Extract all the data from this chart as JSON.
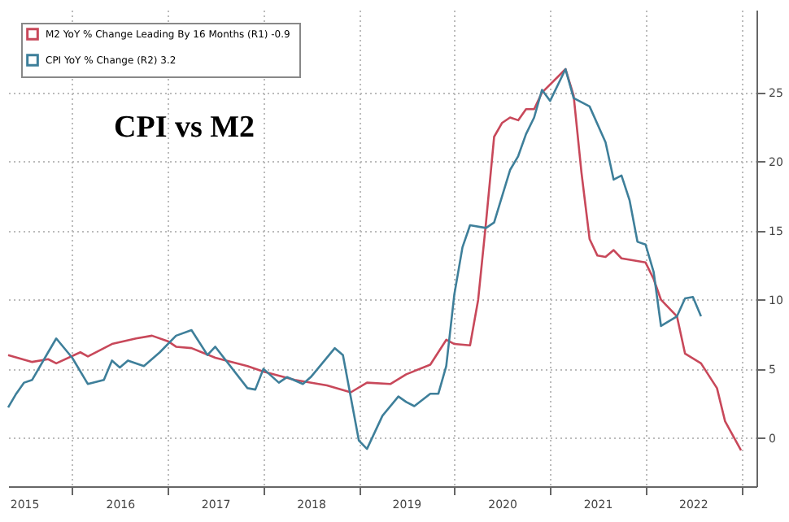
{
  "chart_data": {
    "type": "line",
    "title": "CPI vs M2",
    "legend": "top left",
    "grid": true,
    "line_style": "solid",
    "marker": "none",
    "xlim": [
      "2015-05",
      "2023-03"
    ],
    "xticks": [
      {
        "value": "2015-07",
        "label": "2015"
      },
      {
        "value": "2016",
        "label": null
      },
      {
        "value": "2016-07",
        "label": "2016"
      },
      {
        "value": "2017",
        "label": null
      },
      {
        "value": "2017-07",
        "label": "2017"
      },
      {
        "value": "2018",
        "label": null
      },
      {
        "value": "2018-07",
        "label": "2018"
      },
      {
        "value": "2019",
        "label": null
      },
      {
        "value": "2019-07",
        "label": "2019"
      },
      {
        "value": "2020",
        "label": null
      },
      {
        "value": "2020-07",
        "label": "2020"
      },
      {
        "value": "2021",
        "label": null
      },
      {
        "value": "2021-07",
        "label": "2021"
      },
      {
        "value": "2022",
        "label": null
      },
      {
        "value": "2022-07",
        "label": "2022"
      },
      {
        "value": "2023",
        "label": null
      }
    ],
    "ylim": [
      -3.5,
      31
    ],
    "yticks": [
      0,
      5,
      10,
      15,
      20,
      25
    ],
    "series": [
      {
        "name": "M2 YoY % Change Leading By 16 Months (R1)  -0.9",
        "color": "#c8485a",
        "x": [
          "2015-05",
          "2015-08",
          "2015-10",
          "2015-11",
          "2016-02",
          "2016-03",
          "2016-06",
          "2016-09",
          "2016-11",
          "2017-01",
          "2017-02",
          "2017-04",
          "2017-07",
          "2017-11",
          "2018-01",
          "2018-05",
          "2018-09",
          "2018-12",
          "2019-02",
          "2019-05",
          "2019-07",
          "2019-10",
          "2019-12",
          "2020-01",
          "2020-03",
          "2020-04",
          "2020-05",
          "2020-06",
          "2020-07",
          "2020-08",
          "2020-09",
          "2020-10",
          "2020-11",
          "2020-12",
          "2021-03",
          "2021-04",
          "2021-05",
          "2021-06",
          "2021-07",
          "2021-08",
          "2021-09",
          "2021-10",
          "2022-01",
          "2022-02",
          "2022-03",
          "2022-05",
          "2022-06",
          "2022-08",
          "2022-10",
          "2022-11",
          "2023-01"
        ],
        "values": [
          6.0,
          5.5,
          5.7,
          5.4,
          6.2,
          5.9,
          6.8,
          7.2,
          7.4,
          7.0,
          6.6,
          6.5,
          5.8,
          5.2,
          4.8,
          4.2,
          3.8,
          3.3,
          4.0,
          3.9,
          4.6,
          5.3,
          7.1,
          6.8,
          6.7,
          10.0,
          15.6,
          21.8,
          22.8,
          23.2,
          23.0,
          23.8,
          23.8,
          25.0,
          26.7,
          24.8,
          19.2,
          14.4,
          13.2,
          13.1,
          13.6,
          13.0,
          12.7,
          11.5,
          10.0,
          8.8,
          6.1,
          5.4,
          3.6,
          1.2,
          -0.9
        ]
      },
      {
        "name": "CPI YoY % Change (R2)  3.2",
        "color": "#3e7f9a",
        "x": [
          "2015-05",
          "2015-06",
          "2015-07",
          "2015-08",
          "2015-10",
          "2015-11",
          "2016-01",
          "2016-03",
          "2016-05",
          "2016-06",
          "2016-07",
          "2016-08",
          "2016-10",
          "2016-12",
          "2017-02",
          "2017-04",
          "2017-06",
          "2017-07",
          "2017-11",
          "2017-12",
          "2018-01",
          "2018-03",
          "2018-04",
          "2018-06",
          "2018-07",
          "2018-10",
          "2018-11",
          "2019-01",
          "2019-02",
          "2019-04",
          "2019-06",
          "2019-07",
          "2019-08",
          "2019-10",
          "2019-11",
          "2019-12",
          "2020-01",
          "2020-02",
          "2020-03",
          "2020-05",
          "2020-06",
          "2020-08",
          "2020-09",
          "2020-10",
          "2020-11",
          "2020-12",
          "2021-01",
          "2021-03",
          "2021-04",
          "2021-06",
          "2021-08",
          "2021-09",
          "2021-10",
          "2021-11",
          "2021-12",
          "2022-01",
          "2022-02",
          "2022-03",
          "2022-05",
          "2022-06",
          "2022-07",
          "2022-08"
        ],
        "values": [
          2.2,
          3.2,
          4.0,
          4.2,
          6.2,
          7.2,
          5.8,
          3.9,
          4.2,
          5.6,
          5.1,
          5.6,
          5.2,
          6.2,
          7.4,
          7.8,
          6.0,
          6.6,
          3.6,
          3.5,
          5.0,
          4.0,
          4.4,
          3.9,
          4.4,
          6.5,
          6.0,
          -0.2,
          -0.8,
          1.6,
          3.0,
          2.6,
          2.3,
          3.2,
          3.2,
          5.2,
          10.4,
          13.8,
          15.4,
          15.2,
          15.6,
          19.4,
          20.4,
          22.0,
          23.2,
          25.2,
          24.4,
          26.7,
          24.6,
          24.0,
          21.4,
          18.7,
          19.0,
          17.2,
          14.2,
          14.0,
          12.0,
          8.1,
          8.8,
          10.1,
          10.2,
          8.8
        ]
      }
    ]
  }
}
